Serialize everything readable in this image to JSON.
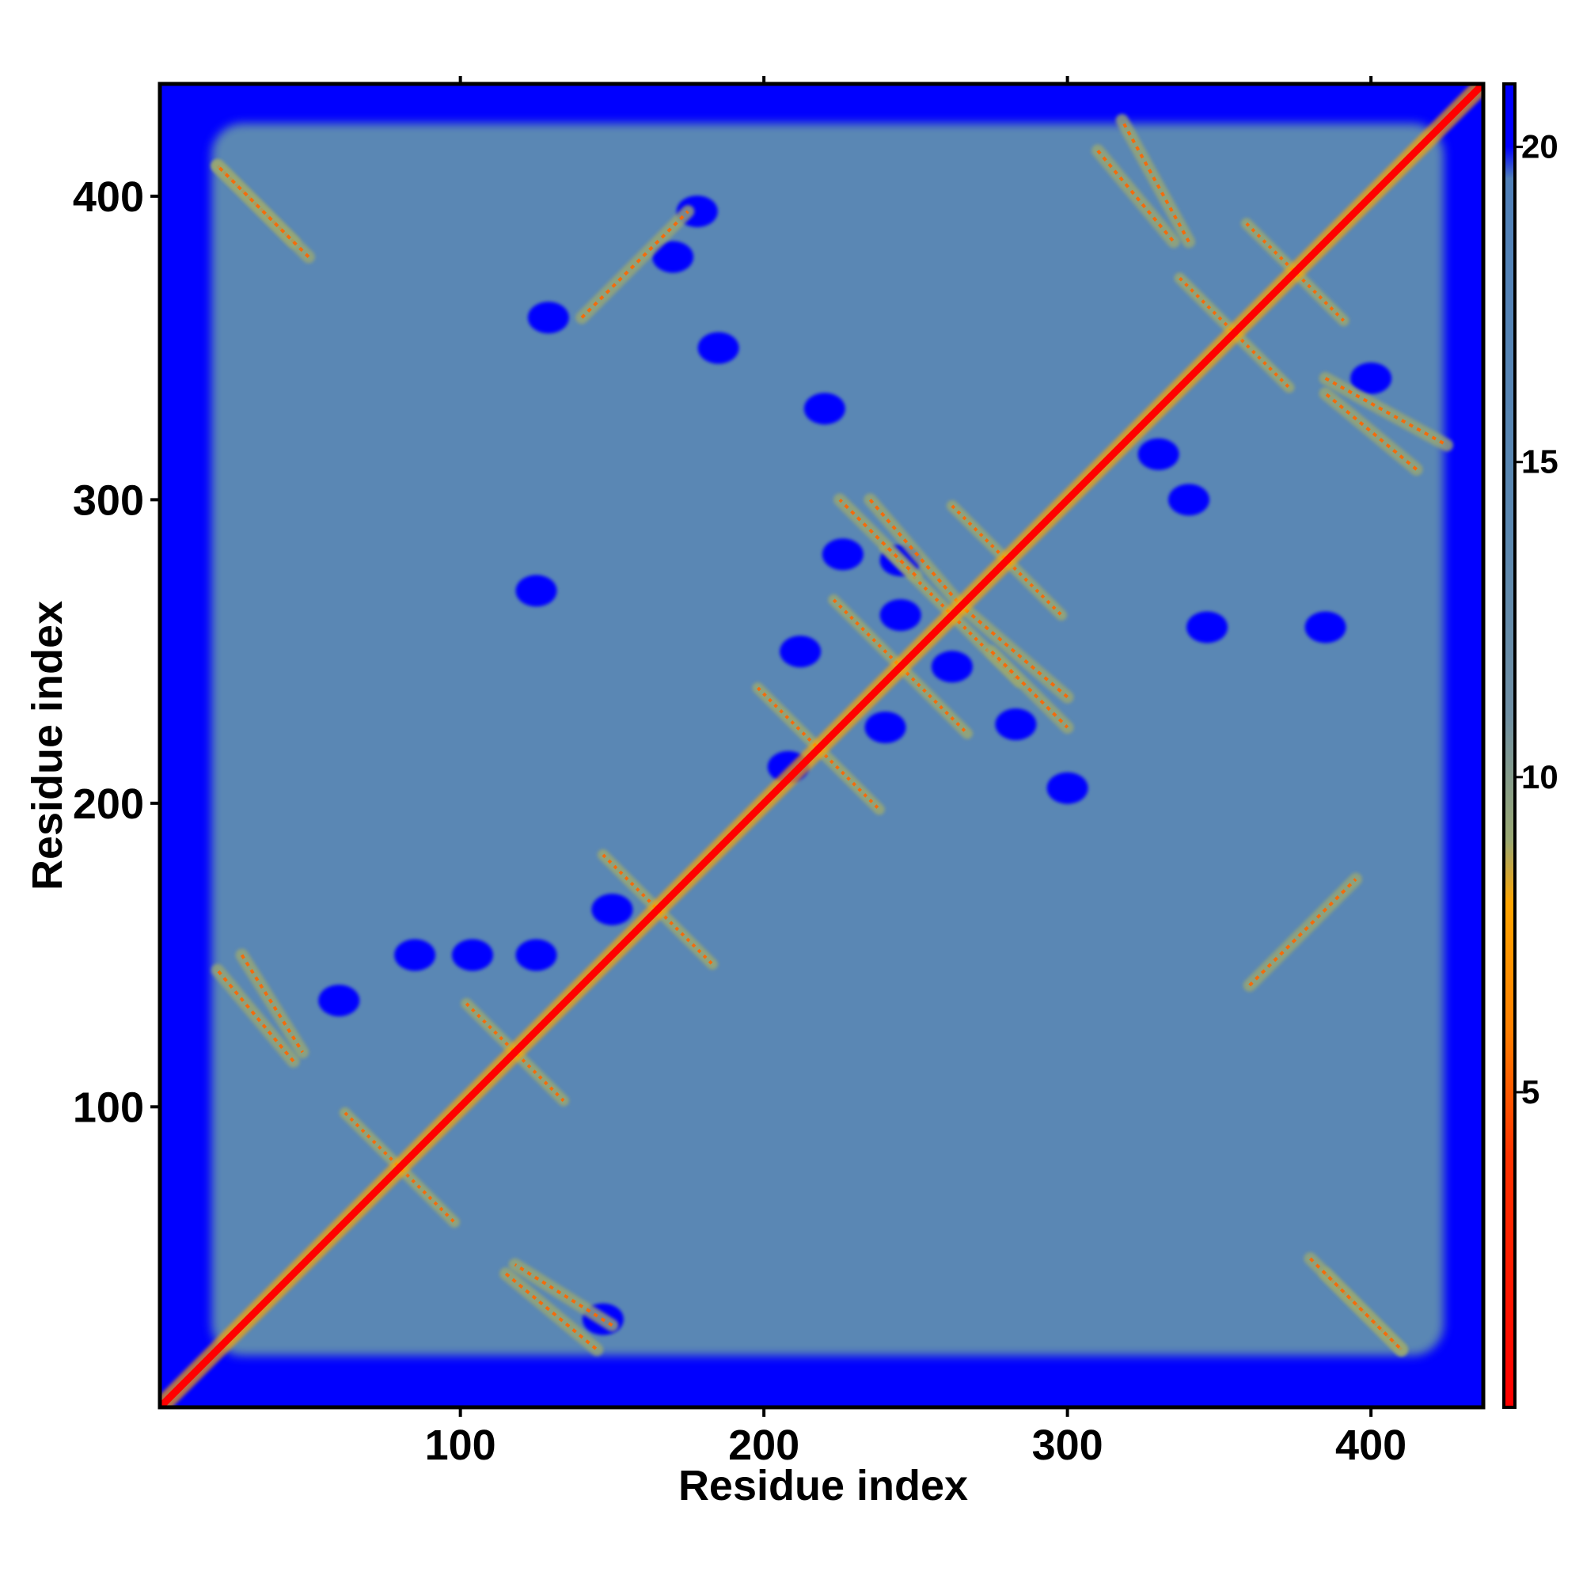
{
  "chart_data": {
    "type": "heatmap",
    "title": "",
    "xlabel": "Residue index",
    "ylabel": "Residue index",
    "xlim": [
      1,
      437
    ],
    "ylim": [
      1,
      437
    ],
    "x_ticks": [
      100,
      200,
      300,
      400
    ],
    "y_ticks": [
      100,
      200,
      300,
      400
    ],
    "x_tick_labels": [
      "100",
      "200",
      "300",
      "400"
    ],
    "y_tick_labels": [
      "100",
      "200",
      "300",
      "400"
    ],
    "colorbar": {
      "range": [
        0,
        21
      ],
      "ticks": [
        5,
        10,
        15,
        20
      ],
      "tick_labels": [
        "5",
        "10",
        "15",
        "20"
      ],
      "stops": [
        {
          "value": 0,
          "color": "#ff0000"
        },
        {
          "value": 4,
          "color": "#ff3300"
        },
        {
          "value": 6,
          "color": "#ff8000"
        },
        {
          "value": 8,
          "color": "#ffa500"
        },
        {
          "value": 9,
          "color": "#9aa872"
        },
        {
          "value": 11,
          "color": "#6f8fa3"
        },
        {
          "value": 14,
          "color": "#5a87b0"
        },
        {
          "value": 19.5,
          "color": "#5080b8"
        },
        {
          "value": 20,
          "color": "#0000ff"
        },
        {
          "value": 21,
          "color": "#0000ff"
        }
      ]
    },
    "background_color": "#0000ff",
    "fill_color": "#5a87b4",
    "diagonal_color": "#ff0000",
    "contact_color": "#ff6600",
    "structure": {
      "diagonal": [
        1,
        437
      ],
      "antiparallel_contacts": [
        {
          "center": [
            80,
            80
          ],
          "span": 18
        },
        {
          "center": [
            118,
            118
          ],
          "span": 16
        },
        {
          "center": [
            165,
            165
          ],
          "span": 18
        },
        {
          "center": [
            218,
            218
          ],
          "span": 20
        },
        {
          "center": [
            245,
            245
          ],
          "span": 22
        },
        {
          "center": [
            262,
            262
          ],
          "span": 22
        },
        {
          "center": [
            280,
            280
          ],
          "span": 18
        },
        {
          "center": [
            355,
            355
          ],
          "span": 18
        },
        {
          "center": [
            375,
            375
          ],
          "span": 16
        }
      ],
      "parallel_contacts": [
        {
          "from": [
            20,
            410
          ],
          "to": [
            45,
            385
          ]
        },
        {
          "from": [
            28,
            150
          ],
          "to": [
            48,
            118
          ]
        },
        {
          "from": [
            115,
            45
          ],
          "to": [
            145,
            20
          ]
        },
        {
          "from": [
            235,
            300
          ],
          "to": [
            265,
            265
          ]
        },
        {
          "from": [
            275,
            250
          ],
          "to": [
            300,
            225
          ]
        },
        {
          "from": [
            310,
            415
          ],
          "to": [
            335,
            385
          ]
        },
        {
          "from": [
            385,
            340
          ],
          "to": [
            425,
            318
          ]
        },
        {
          "from": [
            360,
            140
          ],
          "to": [
            395,
            175
          ]
        },
        {
          "from": [
            380,
            50
          ],
          "to": [
            410,
            20
          ]
        }
      ],
      "blue_blobs": [
        [
          104,
          150
        ],
        [
          125,
          150
        ],
        [
          85,
          150
        ],
        [
          150,
          165
        ],
        [
          147,
          30
        ],
        [
          129,
          360
        ],
        [
          226,
          282
        ],
        [
          212,
          250
        ],
        [
          208,
          212
        ],
        [
          245,
          262
        ],
        [
          262,
          245
        ],
        [
          283,
          226
        ],
        [
          240,
          225
        ],
        [
          330,
          315
        ],
        [
          346,
          258
        ],
        [
          340,
          300
        ],
        [
          400,
          340
        ],
        [
          385,
          258
        ],
        [
          220,
          330
        ],
        [
          185,
          350
        ],
        [
          170,
          380
        ],
        [
          245,
          280
        ],
        [
          125,
          270
        ],
        [
          60,
          135
        ],
        [
          300,
          205
        ],
        [
          178,
          395
        ]
      ]
    }
  }
}
